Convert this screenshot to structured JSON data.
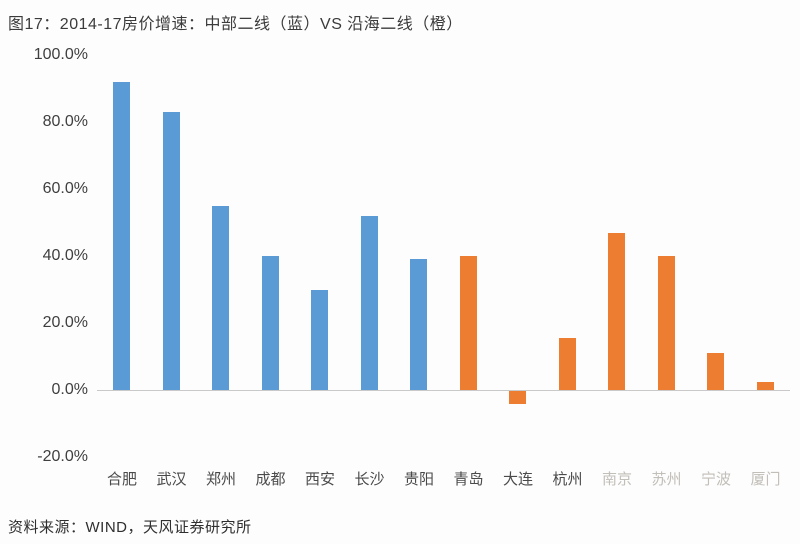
{
  "header": {
    "title": "图17：2014-17房价增速：中部二线（蓝）VS 沿海二线（橙）"
  },
  "footer": {
    "source": "资料来源：WIND，天风证券研究所"
  },
  "colors": {
    "central_blue": "#5b9bd5",
    "coastal_orange": "#ed7d31",
    "axis_line": "#c9c9c9",
    "label_dark": "#4a4a4a",
    "label_faded": "#c2beb8"
  },
  "chart_data": {
    "type": "bar",
    "title": "2014-17房价增速：中部二线（蓝）VS 沿海二线（橙）",
    "xlabel": "",
    "ylabel": "",
    "ylim": [
      -20,
      100
    ],
    "grid": false,
    "legend_position": "in-title",
    "series_legend": [
      {
        "name": "中部二线",
        "color": "#5b9bd5"
      },
      {
        "name": "沿海二线",
        "color": "#ed7d31"
      }
    ],
    "categories": [
      "合肥",
      "武汉",
      "郑州",
      "成都",
      "西安",
      "长沙",
      "贵阳",
      "青岛",
      "大连",
      "杭州",
      "南京",
      "苏州",
      "宁波",
      "厦门"
    ],
    "values": [
      92,
      83,
      55,
      40,
      30,
      52,
      39,
      40,
      -4,
      15.5,
      47,
      40,
      11,
      2.5
    ],
    "bar_groups": [
      "中部二线",
      "中部二线",
      "中部二线",
      "中部二线",
      "中部二线",
      "中部二线",
      "中部二线",
      "沿海二线",
      "沿海二线",
      "沿海二线",
      "沿海二线",
      "沿海二线",
      "沿海二线",
      "沿海二线"
    ],
    "faded_labels": [
      "南京",
      "苏州",
      "宁波",
      "厦门"
    ],
    "y_ticks": [
      100,
      80,
      60,
      40,
      20,
      0,
      -20
    ],
    "y_tick_labels": [
      "100.0%",
      "80.0%",
      "60.0%",
      "40.0%",
      "20.0%",
      "0.0%",
      "-20.0%"
    ]
  }
}
